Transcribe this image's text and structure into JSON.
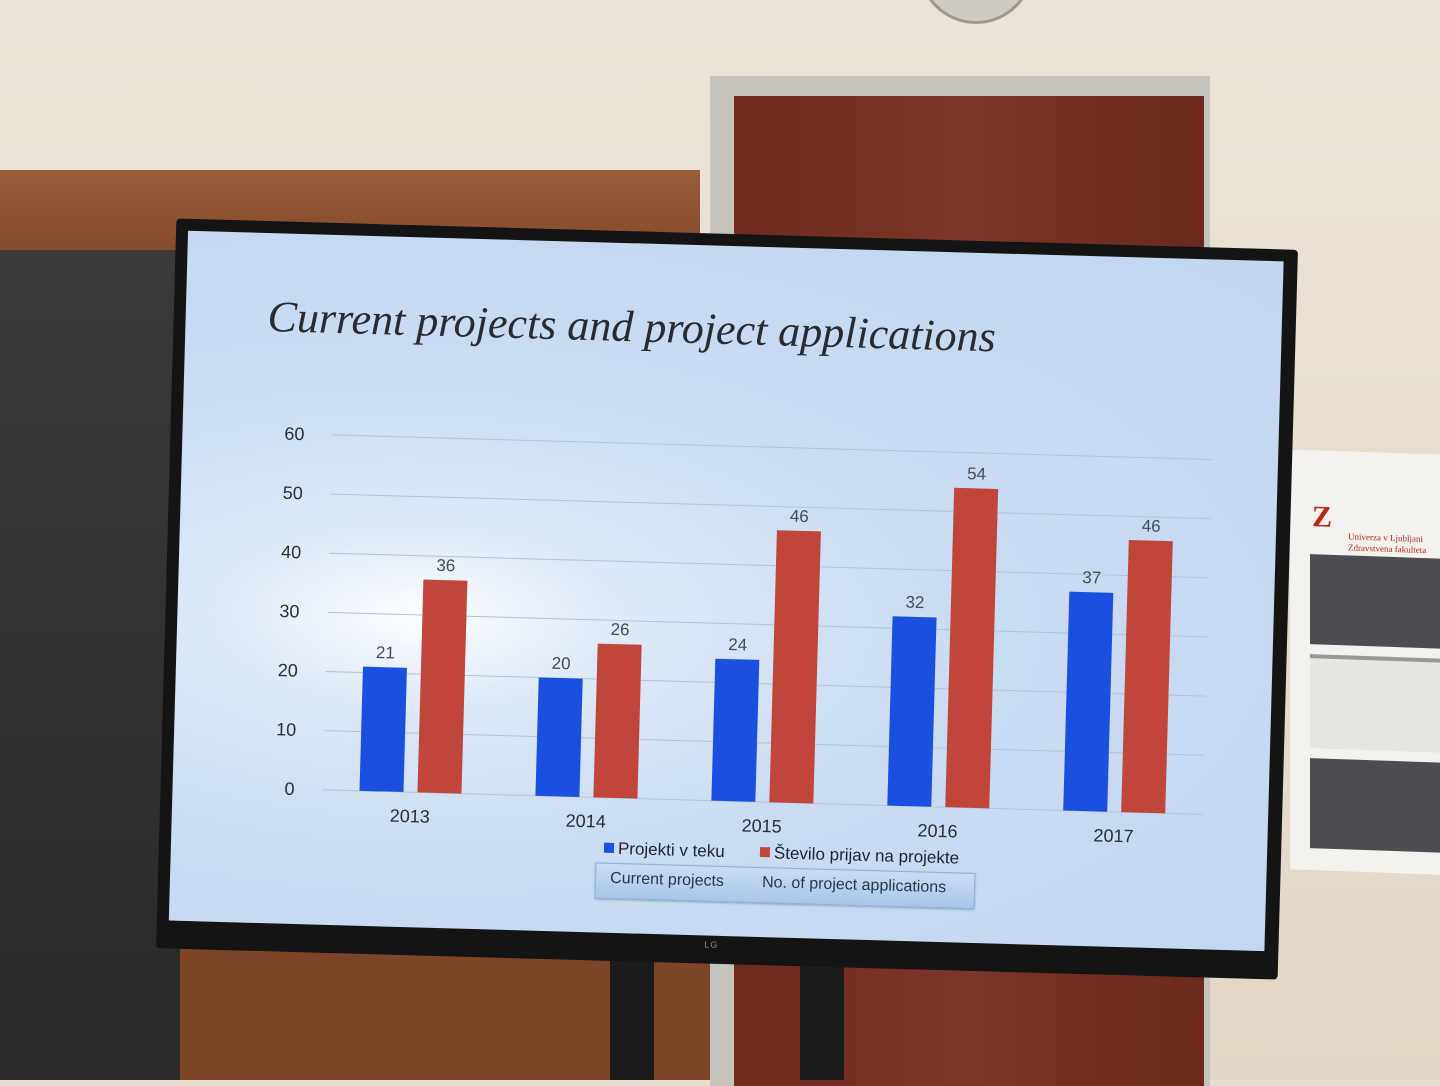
{
  "slide": {
    "title": "Current projects and project applications",
    "legend": {
      "series1_label": "Projekti v teku",
      "series2_label": "Število prijav na projekte",
      "series1_sub": "Current projects",
      "series2_sub": "No. of project applications"
    },
    "tv_logo": "LG"
  },
  "calendar": {
    "university_line1": "Univerza v Ljubljani",
    "university_line2": "Zdravstvena fakulteta"
  },
  "colors": {
    "series1": "#1a4fe0",
    "series2": "#c0453a",
    "gridline": "#b3c3d8",
    "axis_text": "#2d2d33"
  },
  "chart_data": {
    "type": "bar",
    "categories": [
      "2013",
      "2014",
      "2015",
      "2016",
      "2017"
    ],
    "series": [
      {
        "name": "Projekti v teku",
        "values": [
          21,
          20,
          24,
          32,
          37
        ]
      },
      {
        "name": "Število prijav na projekte",
        "values": [
          36,
          26,
          46,
          54,
          46
        ]
      }
    ],
    "title": "Current projects and project applications",
    "ylim": [
      0,
      60
    ],
    "yticks": [
      0,
      10,
      20,
      30,
      40,
      50,
      60
    ],
    "grid": true,
    "legend_position": "bottom",
    "data_labels": true
  }
}
